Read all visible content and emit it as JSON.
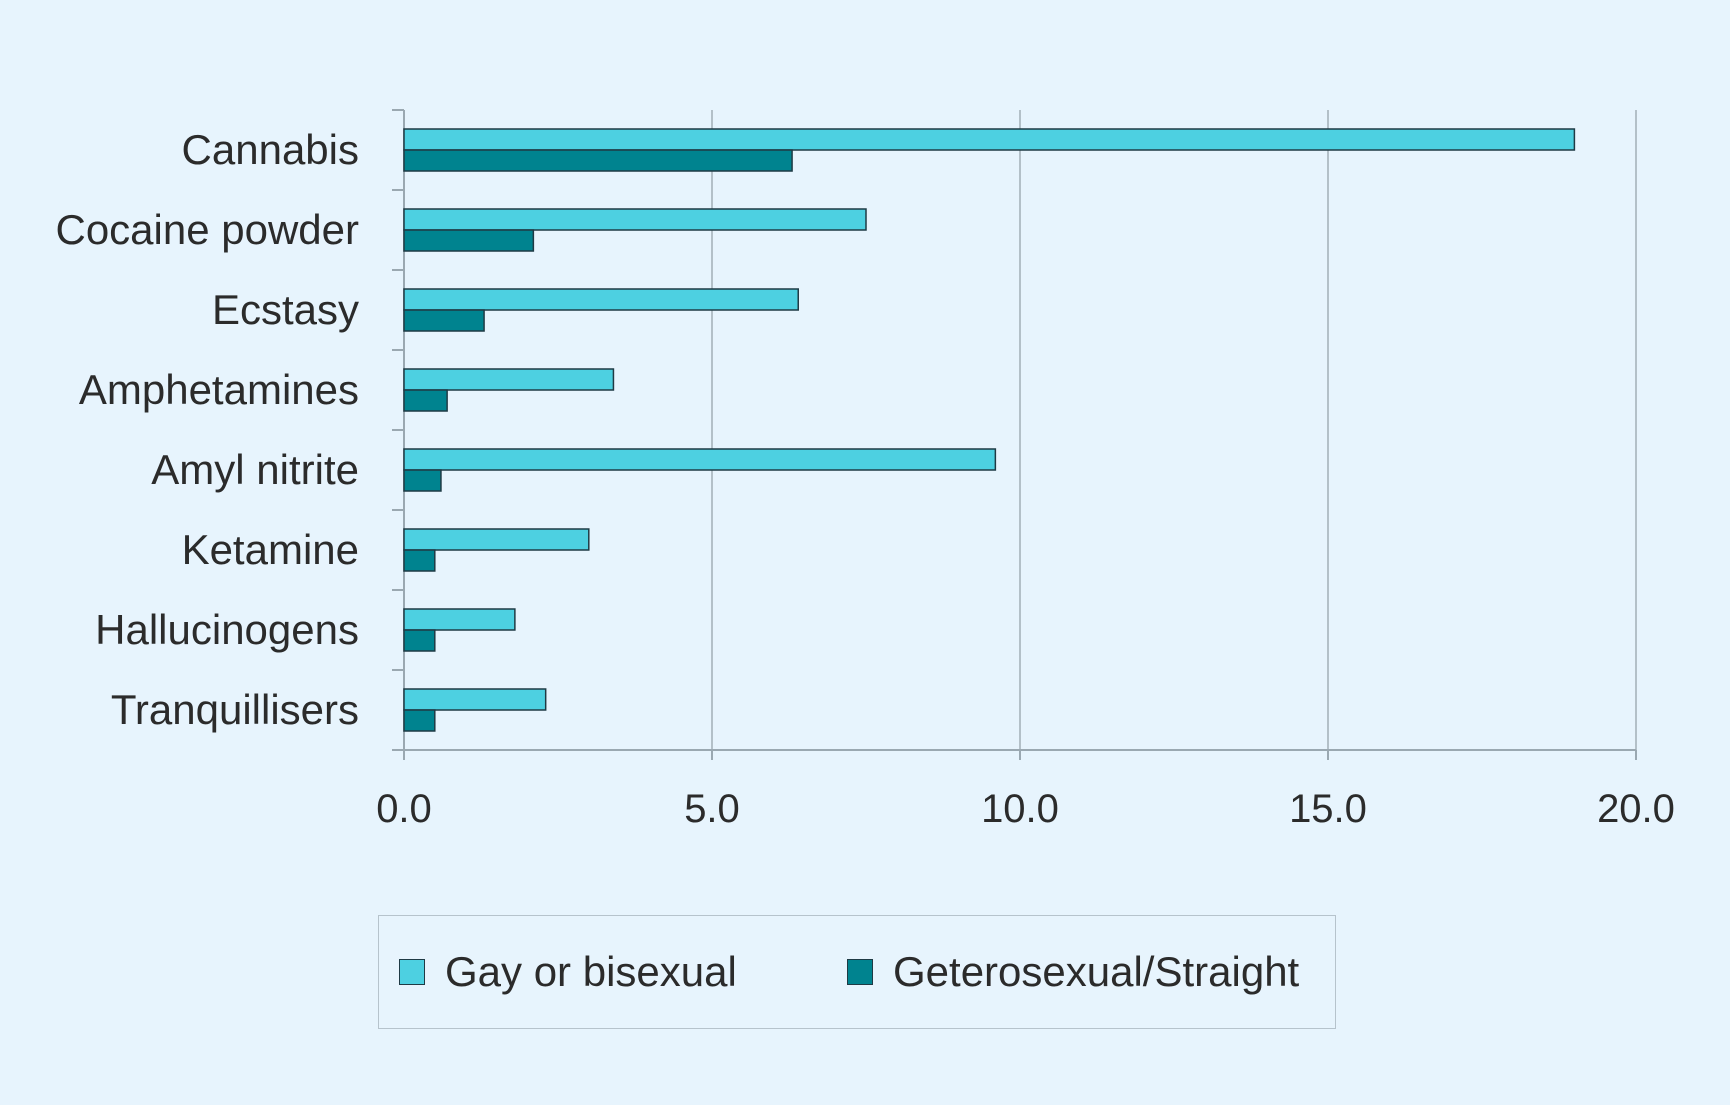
{
  "chart_data": {
    "type": "bar",
    "orientation": "horizontal",
    "categories": [
      "Cannabis",
      "Cocaine powder",
      "Ecstasy",
      "Amphetamines",
      "Amyl nitrite",
      "Ketamine",
      "Hallucinogens",
      "Tranquillisers"
    ],
    "series": [
      {
        "name": "Gay or bisexual",
        "color": "#4dd0e1",
        "values": [
          19.0,
          7.5,
          6.4,
          3.4,
          9.6,
          3.0,
          1.8,
          2.3
        ]
      },
      {
        "name": "Geterosexual/Straight",
        "color": "#00838f",
        "values": [
          6.3,
          2.1,
          1.3,
          0.7,
          0.6,
          0.5,
          0.5,
          0.5
        ]
      }
    ],
    "xlim": [
      0,
      20
    ],
    "xticks": [
      0,
      5,
      10,
      15,
      20
    ],
    "xtick_labels": [
      "0.0",
      "5.0",
      "10.0",
      "15.0",
      "20.0"
    ],
    "grid": true,
    "legend_position": "bottom"
  }
}
